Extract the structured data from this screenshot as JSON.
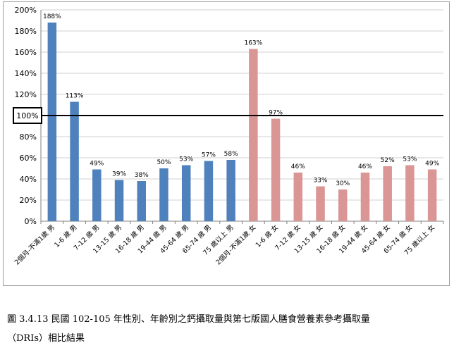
{
  "caption": {
    "line1": "圖 3.4.13 民國 102-105 年性別、年齡別之鈣攝取量與第七版國人膳食營養素參考攝取量",
    "line2": "（DRIs）相比結果"
  },
  "chart_data": {
    "type": "bar",
    "categories": [
      "2個月-不滿1歲 男",
      "1-6 歲 男",
      "7-12 歲 男",
      "13-15 歲 男",
      "16-18 歲 男",
      "19-44 歲 男",
      "45-64 歲 男",
      "65-74 歲 男",
      "75 歲以上 男",
      "2個月-不滿1歲 女",
      "1-6 歲 女",
      "7-12 歲 女",
      "13-15 歲 女",
      "16-18 歲 女",
      "19-44 歲 女",
      "45-64 歲 女",
      "65-74 歲 女",
      "75 歲以上 女"
    ],
    "values": [
      188,
      113,
      49,
      39,
      38,
      50,
      53,
      57,
      58,
      163,
      97,
      46,
      33,
      30,
      46,
      52,
      53,
      49
    ],
    "data_labels": [
      "188%",
      "113%",
      "49%",
      "39%",
      "38%",
      "50%",
      "53%",
      "57%",
      "58%",
      "163%",
      "97%",
      "46%",
      "33%",
      "30%",
      "46%",
      "52%",
      "53%",
      "49%"
    ],
    "ylim": [
      0,
      200
    ],
    "y_ticks": [
      "0%",
      "20%",
      "40%",
      "60%",
      "80%",
      "100%",
      "120%",
      "140%",
      "160%",
      "180%",
      "200%"
    ],
    "reference_line": {
      "value": 100,
      "label": "100%"
    },
    "grid": true,
    "colors": {
      "male": "#4f81bd",
      "female": "#d99694",
      "reference": "#000000",
      "grid": "#d0d0d0"
    },
    "title": "",
    "xlabel": "",
    "ylabel": ""
  }
}
